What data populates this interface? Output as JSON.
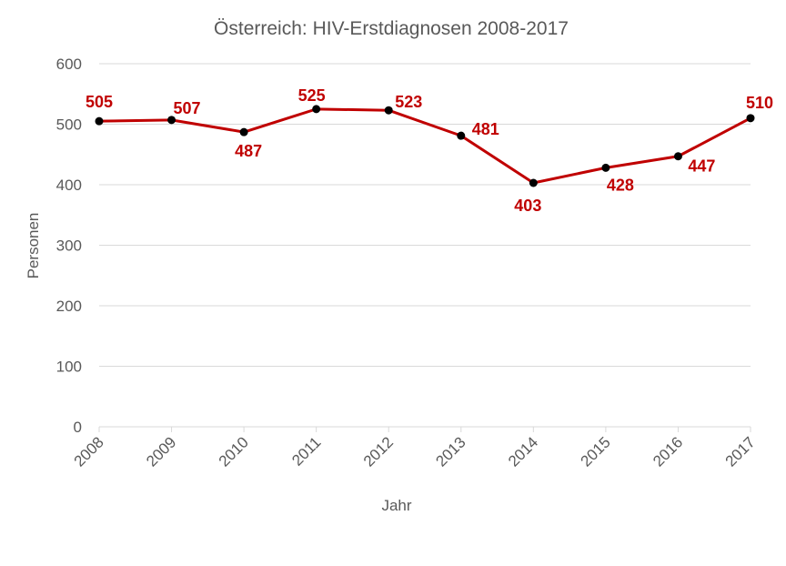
{
  "chart_data": {
    "type": "line",
    "title": "Österreich: HIV-Erstdiagnosen 2008-2017",
    "xlabel": "Jahr",
    "ylabel": "Personen",
    "categories": [
      "2008",
      "2009",
      "2010",
      "2011",
      "2012",
      "2013",
      "2014",
      "2015",
      "2016",
      "2017"
    ],
    "series": [
      {
        "name": "HIV-Erstdiagnosen",
        "values": [
          505,
          507,
          487,
          525,
          523,
          481,
          403,
          428,
          447,
          510
        ]
      }
    ],
    "ylim": [
      0,
      600
    ],
    "yticks": [
      0,
      100,
      200,
      300,
      400,
      500,
      600
    ],
    "grid": true,
    "legend": "none",
    "line_color": "#c00000",
    "marker_color": "#000000",
    "label_color": "#c00000"
  }
}
